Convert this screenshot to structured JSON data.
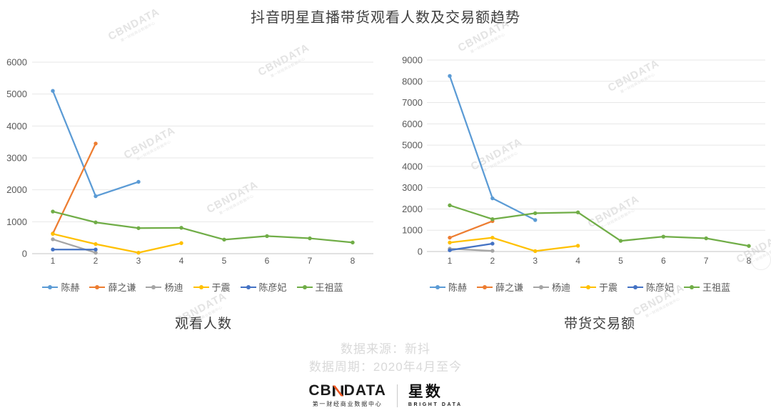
{
  "header": {
    "title": "抖音明星直播带货观看人数及交易额趋势"
  },
  "chart_data": [
    {
      "type": "line",
      "title": "观看人数",
      "xlabel": "",
      "ylabel": "",
      "x": [
        "1",
        "2",
        "3",
        "4",
        "5",
        "6",
        "7",
        "8"
      ],
      "ylim": [
        0,
        6000
      ],
      "yticks": [
        0,
        1000,
        2000,
        3000,
        4000,
        5000,
        6000
      ],
      "grid": true,
      "legend_position": "bottom",
      "series": [
        {
          "name": "陈赫",
          "color": "#5B9BD5",
          "values": [
            5100,
            1800,
            2250,
            null,
            null,
            null,
            null,
            null
          ]
        },
        {
          "name": "薛之谦",
          "color": "#ED7D31",
          "values": [
            630,
            3450,
            null,
            null,
            null,
            null,
            null,
            null
          ]
        },
        {
          "name": "杨迪",
          "color": "#A5A5A5",
          "values": [
            450,
            30,
            null,
            null,
            null,
            null,
            null,
            null
          ]
        },
        {
          "name": "于震",
          "color": "#FFC000",
          "values": [
            620,
            300,
            30,
            330,
            null,
            null,
            null,
            null
          ]
        },
        {
          "name": "陈彦妃",
          "color": "#4472C4",
          "values": [
            130,
            130,
            null,
            null,
            null,
            null,
            null,
            null
          ]
        },
        {
          "name": "王祖蓝",
          "color": "#70AD47",
          "values": [
            1320,
            980,
            800,
            810,
            440,
            550,
            480,
            350
          ]
        }
      ]
    },
    {
      "type": "line",
      "title": "带货交易额",
      "xlabel": "",
      "ylabel": "",
      "x": [
        "1",
        "2",
        "3",
        "4",
        "5",
        "6",
        "7",
        "8"
      ],
      "ylim": [
        0,
        9000
      ],
      "yticks": [
        0,
        1000,
        2000,
        3000,
        4000,
        5000,
        6000,
        7000,
        8000,
        9000
      ],
      "grid": true,
      "legend_position": "bottom",
      "series": [
        {
          "name": "陈赫",
          "color": "#5B9BD5",
          "values": [
            8250,
            2500,
            1480,
            null,
            null,
            null,
            null,
            null
          ]
        },
        {
          "name": "薛之谦",
          "color": "#ED7D31",
          "values": [
            650,
            1430,
            null,
            null,
            null,
            null,
            null,
            null
          ]
        },
        {
          "name": "杨迪",
          "color": "#A5A5A5",
          "values": [
            130,
            30,
            null,
            null,
            null,
            null,
            null,
            null
          ]
        },
        {
          "name": "于震",
          "color": "#FFC000",
          "values": [
            420,
            650,
            20,
            270,
            null,
            null,
            null,
            null
          ]
        },
        {
          "name": "陈彦妃",
          "color": "#4472C4",
          "values": [
            60,
            370,
            null,
            null,
            null,
            null,
            null,
            null
          ]
        },
        {
          "name": "王祖蓝",
          "color": "#70AD47",
          "values": [
            2170,
            1520,
            1800,
            1840,
            500,
            700,
            620,
            260
          ]
        }
      ]
    }
  ],
  "footer": {
    "source": "数据来源：新抖",
    "period": "数据周期：2020年4月至今"
  },
  "branding": {
    "cbn_prefix": "CB",
    "cbn_suffix": "DATA",
    "cbn_sub": "第一财经商业数据中心",
    "cbn_accent_color": "#F0551F",
    "star_text": "星数",
    "star_sub": "BRIGHT DATA"
  },
  "watermark": {
    "text": "CBNDATA",
    "subtext": "第一财经商业数据中心"
  }
}
